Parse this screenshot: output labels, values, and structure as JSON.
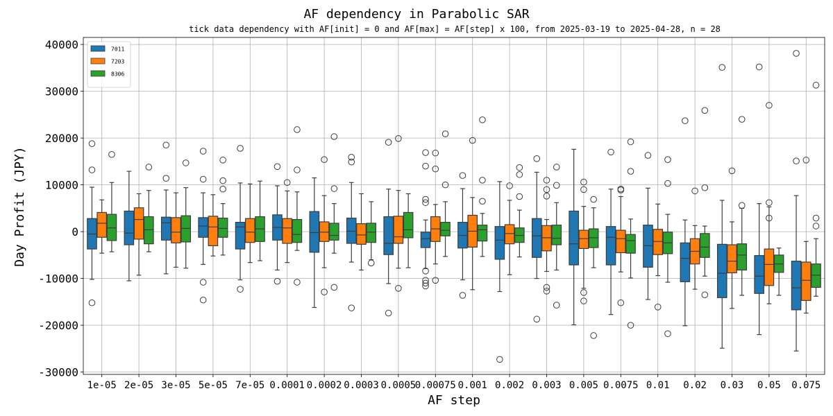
{
  "chart_data": {
    "type": "boxplot",
    "title": "AF dependency in Parabolic SAR",
    "subtitle": "tick data dependency with AF[init] = 0 and AF[max] = AF[step] x 100, from 2025-03-19 to 2025-04-28, n = 28",
    "xlabel": "AF step",
    "ylabel": "Day Profit (JPY)",
    "ylim": [
      -30500,
      41500
    ],
    "yticks": [
      -30000,
      -20000,
      -10000,
      0,
      10000,
      20000,
      30000,
      40000
    ],
    "grid": true,
    "legend_position": "top-left",
    "categories": [
      "1e-05",
      "2e-05",
      "3e-05",
      "5e-05",
      "7e-05",
      "0.0001",
      "0.0002",
      "0.0003",
      "0.0005",
      "0.00075",
      "0.001",
      "0.002",
      "0.003",
      "0.005",
      "0.0075",
      "0.01",
      "0.02",
      "0.03",
      "0.05",
      "0.075"
    ],
    "series": [
      {
        "name": "7011",
        "color": "#1f77b4",
        "boxes": [
          {
            "lw": -10200,
            "q1": -3700,
            "med": -500,
            "q3": 2800,
            "uw": 9500,
            "out": [
              18800,
              13200,
              -15200
            ]
          },
          {
            "lw": -10500,
            "q1": -2800,
            "med": -300,
            "q3": 4400,
            "uw": 12900,
            "out": []
          },
          {
            "lw": -9000,
            "q1": -1800,
            "med": 1900,
            "q3": 3100,
            "uw": 8900,
            "out": [
              18500,
              11400
            ]
          },
          {
            "lw": -7000,
            "q1": -1200,
            "med": 1200,
            "q3": 3000,
            "uw": 8300,
            "out": [
              17200,
              11200,
              -10800,
              -14600
            ]
          },
          {
            "lw": -10300,
            "q1": -3700,
            "med": 1000,
            "q3": 2000,
            "uw": 10400,
            "out": [
              17800,
              -12300
            ]
          },
          {
            "lw": -8200,
            "q1": -1800,
            "med": 900,
            "q3": 3600,
            "uw": 9800,
            "out": [
              13900,
              -10600
            ]
          },
          {
            "lw": -16200,
            "q1": -4400,
            "med": -200,
            "q3": 4300,
            "uw": 11500,
            "out": []
          },
          {
            "lw": -6500,
            "q1": -2500,
            "med": 100,
            "q3": 2900,
            "uw": 10500,
            "out": [
              15900,
              14900,
              -16300
            ]
          },
          {
            "lw": -11100,
            "q1": -4900,
            "med": -2500,
            "q3": 3200,
            "uw": 9100,
            "out": [
              19100,
              -17400
            ]
          },
          {
            "lw": -7900,
            "q1": -3400,
            "med": -1500,
            "q3": -100,
            "uw": 2500,
            "out": [
              16900,
              14000,
              6900,
              6200,
              -8400,
              -10400,
              -11000,
              -11600
            ]
          },
          {
            "lw": -10300,
            "q1": -3500,
            "med": -800,
            "q3": 2000,
            "uw": 9200,
            "out": [
              12000,
              -13600
            ]
          },
          {
            "lw": -12800,
            "q1": -5900,
            "med": -1800,
            "q3": 1100,
            "uw": 10700,
            "out": [
              -27300
            ]
          },
          {
            "lw": -10000,
            "q1": -5500,
            "med": -900,
            "q3": 2800,
            "uw": 12700,
            "out": [
              15600,
              -18700
            ]
          },
          {
            "lw": -19900,
            "q1": -7100,
            "med": -2600,
            "q3": 4400,
            "uw": 17600,
            "out": []
          },
          {
            "lw": -17700,
            "q1": -7100,
            "med": -1200,
            "q3": 1100,
            "uw": 9100,
            "out": [
              17000
            ]
          },
          {
            "lw": -14500,
            "q1": -7600,
            "med": -3000,
            "q3": 1400,
            "uw": 9300,
            "out": [
              16300
            ]
          },
          {
            "lw": -20100,
            "q1": -10700,
            "med": -5700,
            "q3": -2400,
            "uw": 2500,
            "out": [
              23700
            ]
          },
          {
            "lw": -24900,
            "q1": -14100,
            "med": -8900,
            "q3": -2700,
            "uw": 6700,
            "out": [
              35100
            ]
          },
          {
            "lw": -22000,
            "q1": -13200,
            "med": -9500,
            "q3": -5100,
            "uw": 6000,
            "out": [
              35200
            ]
          },
          {
            "lw": -25500,
            "q1": -16700,
            "med": -12000,
            "q3": -6300,
            "uw": 7700,
            "out": [
              38100,
              15100
            ]
          }
        ]
      },
      {
        "name": "7203",
        "color": "#ff7f0e",
        "boxes": [
          {
            "lw": -4600,
            "q1": -1200,
            "med": 1800,
            "q3": 4100,
            "uw": 6800,
            "out": []
          },
          {
            "lw": -9300,
            "q1": -1600,
            "med": 2600,
            "q3": 5100,
            "uw": 8100,
            "out": []
          },
          {
            "lw": -7600,
            "q1": -2400,
            "med": -100,
            "q3": 3000,
            "uw": 8300,
            "out": []
          },
          {
            "lw": -5200,
            "q1": -3000,
            "med": 1000,
            "q3": 3300,
            "uw": 7900,
            "out": []
          },
          {
            "lw": -6600,
            "q1": -2300,
            "med": -100,
            "q3": 2800,
            "uw": 10200,
            "out": []
          },
          {
            "lw": -6600,
            "q1": -2500,
            "med": 800,
            "q3": 2800,
            "uw": 8700,
            "out": [
              10500
            ]
          },
          {
            "lw": -7700,
            "q1": -2100,
            "med": -100,
            "q3": 2100,
            "uw": 7700,
            "out": [
              15400,
              -12900
            ]
          },
          {
            "lw": -8200,
            "q1": -2700,
            "med": -700,
            "q3": 1700,
            "uw": 8100,
            "out": []
          },
          {
            "lw": -7800,
            "q1": -2500,
            "med": -1100,
            "q3": 3300,
            "uw": 8800,
            "out": [
              19900,
              -12100
            ]
          },
          {
            "lw": -6900,
            "q1": -2100,
            "med": 600,
            "q3": 3200,
            "uw": 5800,
            "out": [
              16800,
              13400,
              -10400
            ]
          },
          {
            "lw": -12400,
            "q1": -3300,
            "med": 100,
            "q3": 3500,
            "uw": 7300,
            "out": [
              19500
            ]
          },
          {
            "lw": -9200,
            "q1": -2600,
            "med": -400,
            "q3": 1500,
            "uw": 6700,
            "out": [
              9800
            ]
          },
          {
            "lw": -8500,
            "q1": -4100,
            "med": -1300,
            "q3": 1300,
            "uw": 2600,
            "out": [
              11000,
              9000,
              7600,
              -11900,
              -12700
            ]
          },
          {
            "lw": -12100,
            "q1": -3600,
            "med": -1500,
            "q3": 300,
            "uw": 5400,
            "out": [
              10600,
              9000,
              -13000,
              -14800
            ]
          },
          {
            "lw": -8600,
            "q1": -4500,
            "med": -1500,
            "q3": 300,
            "uw": 7500,
            "out": [
              9100,
              8900,
              -15200
            ]
          },
          {
            "lw": -9400,
            "q1": -4900,
            "med": -2100,
            "q3": 500,
            "uw": 5900,
            "out": [
              -16100
            ]
          },
          {
            "lw": -12300,
            "q1": -6900,
            "med": -4200,
            "q3": -1500,
            "uw": 1300,
            "out": [
              8700
            ]
          },
          {
            "lw": -16400,
            "q1": -8800,
            "med": -6300,
            "q3": -2800,
            "uw": 2100,
            "out": [
              13000
            ]
          },
          {
            "lw": -15400,
            "q1": -11500,
            "med": -7000,
            "q3": -3700,
            "uw": 5300,
            "out": [
              27000,
              6200,
              2900
            ]
          },
          {
            "lw": -17400,
            "q1": -14700,
            "med": -10400,
            "q3": -6500,
            "uw": -2100,
            "out": [
              15300
            ]
          }
        ]
      },
      {
        "name": "8306",
        "color": "#2ca02c",
        "boxes": [
          {
            "lw": -4300,
            "q1": -1900,
            "med": 800,
            "q3": 3700,
            "uw": 10500,
            "out": [
              16500
            ]
          },
          {
            "lw": -4300,
            "q1": -2600,
            "med": 400,
            "q3": 3200,
            "uw": 8800,
            "out": [
              13800
            ]
          },
          {
            "lw": -7800,
            "q1": -2200,
            "med": 700,
            "q3": 3400,
            "uw": 9400,
            "out": [
              14700
            ]
          },
          {
            "lw": -5000,
            "q1": -1200,
            "med": 700,
            "q3": 2900,
            "uw": 6000,
            "out": [
              15300,
              10900,
              9100
            ]
          },
          {
            "lw": -6200,
            "q1": -2100,
            "med": 600,
            "q3": 3200,
            "uw": 10800,
            "out": []
          },
          {
            "lw": -4000,
            "q1": -2300,
            "med": -600,
            "q3": 2600,
            "uw": 8500,
            "out": [
              21800,
              13200,
              -10800
            ]
          },
          {
            "lw": -4600,
            "q1": -1800,
            "med": -800,
            "q3": 1800,
            "uw": 6000,
            "out": [
              20300,
              9200,
              -11900
            ]
          },
          {
            "lw": -6000,
            "q1": -2300,
            "med": -100,
            "q3": 1800,
            "uw": 6400,
            "out": [
              -6700
            ]
          },
          {
            "lw": -7700,
            "q1": -1300,
            "med": 400,
            "q3": 4100,
            "uw": 8100,
            "out": []
          },
          {
            "lw": -5300,
            "q1": -900,
            "med": 300,
            "q3": 2000,
            "uw": 6400,
            "out": [
              20900,
              10000
            ]
          },
          {
            "lw": -5300,
            "q1": -2000,
            "med": 400,
            "q3": 1400,
            "uw": 3900,
            "out": [
              23900,
              11000,
              6500
            ]
          },
          {
            "lw": -5400,
            "q1": -2300,
            "med": -800,
            "q3": 800,
            "uw": 4600,
            "out": [
              13700,
              12200,
              7500
            ]
          },
          {
            "lw": -8200,
            "q1": -2800,
            "med": -1400,
            "q3": 1400,
            "uw": 6200,
            "out": [
              13800,
              9900,
              -15700
            ]
          },
          {
            "lw": -7700,
            "q1": -3400,
            "med": -1300,
            "q3": 600,
            "uw": 5100,
            "out": [
              6900,
              -22200
            ]
          },
          {
            "lw": -9900,
            "q1": -4600,
            "med": -1900,
            "q3": -600,
            "uw": 2700,
            "out": [
              19200,
              12900,
              -20000
            ]
          },
          {
            "lw": -10800,
            "q1": -4700,
            "med": -2400,
            "q3": -100,
            "uw": 3700,
            "out": [
              15400,
              10300,
              -21800
            ]
          },
          {
            "lw": -9500,
            "q1": -5500,
            "med": -3300,
            "q3": -400,
            "uw": 1200,
            "out": [
              25900,
              9400,
              -13500
            ]
          },
          {
            "lw": -13600,
            "q1": -8200,
            "med": -5000,
            "q3": -2600,
            "uw": 5000,
            "out": [
              24000,
              5600
            ]
          },
          {
            "lw": -13600,
            "q1": -8700,
            "med": -6900,
            "q3": -5000,
            "uw": -3500,
            "out": []
          },
          {
            "lw": -13800,
            "q1": -11900,
            "med": -9300,
            "q3": -6900,
            "uw": -1500,
            "out": [
              31300,
              2900,
              1200
            ]
          }
        ]
      }
    ]
  }
}
